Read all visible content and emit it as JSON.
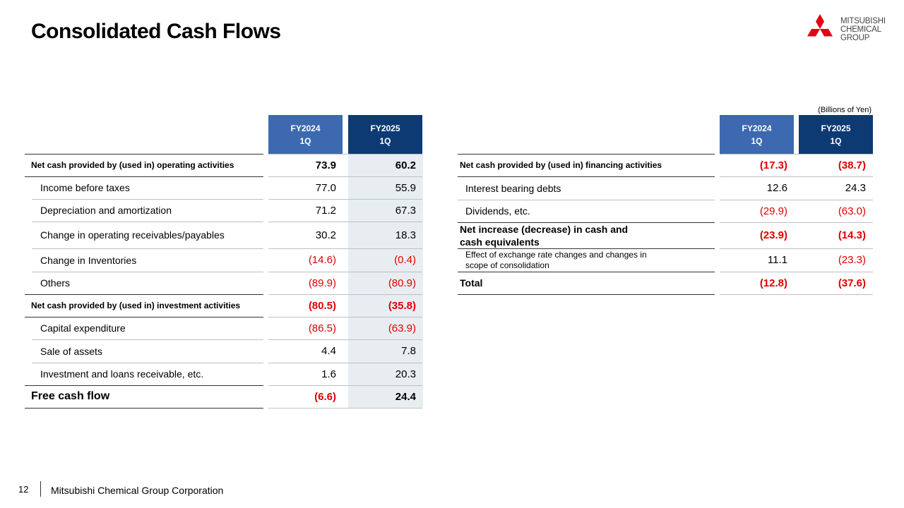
{
  "title": "Consolidated Cash Flows",
  "logo": {
    "line1": "MITSUBISHI",
    "line2": "CHEMICAL",
    "line3": "GROUP",
    "color": "#e60012"
  },
  "unit_note": "(Billions of Yen)",
  "columns": {
    "fy2024": {
      "line1": "FY2024",
      "line2": "1Q",
      "color": "#3d69b0"
    },
    "fy2025": {
      "line1": "FY2025",
      "line2": "1Q",
      "color": "#0e3a74"
    }
  },
  "left_rows": [
    {
      "label": "Net cash provided by (used in) operating activities",
      "fy2024": "73.9",
      "fy2025": "60.2"
    },
    {
      "label": "Income before taxes",
      "fy2024": "77.0",
      "fy2025": "55.9"
    },
    {
      "label": "Depreciation and amortization",
      "fy2024": "71.2",
      "fy2025": "67.3"
    },
    {
      "label": "Change in operating receivables/payables",
      "fy2024": "30.2",
      "fy2025": "18.3"
    },
    {
      "label": "Change in Inventories",
      "fy2024": "(14.6)",
      "fy2025": "(0.4)"
    },
    {
      "label": "Others",
      "fy2024": "(89.9)",
      "fy2025": "(80.9)"
    },
    {
      "label": "Net cash provided by (used in) investment activities",
      "fy2024": "(80.5)",
      "fy2025": "(35.8)"
    },
    {
      "label": "Capital expenditure",
      "fy2024": "(86.5)",
      "fy2025": "(63.9)"
    },
    {
      "label": "Sale of assets",
      "fy2024": "4.4",
      "fy2025": "7.8"
    },
    {
      "label": "Investment and loans receivable, etc.",
      "fy2024": "1.6",
      "fy2025": "20.3"
    },
    {
      "label": "Free cash flow",
      "fy2024": "(6.6)",
      "fy2025": "24.4"
    }
  ],
  "right_rows": [
    {
      "label": "Net cash provided by (used in) financing activities",
      "fy2024": "(17.3)",
      "fy2025": "(38.7)"
    },
    {
      "label": "Interest bearing debts",
      "fy2024": "12.6",
      "fy2025": "24.3"
    },
    {
      "label": "Dividends, etc.",
      "fy2024": "(29.9)",
      "fy2025": "(63.0)"
    },
    {
      "label_line1": "Net increase (decrease) in cash and",
      "label_line2": "cash equivalents",
      "fy2024": "(23.9)",
      "fy2025": "(14.3)"
    },
    {
      "label_line1": "Effect of exchange rate changes and changes in",
      "label_line2": "scope of consolidation",
      "fy2024": "11.1",
      "fy2025": "(23.3)"
    },
    {
      "label": "Total",
      "fy2024": "(12.8)",
      "fy2025": "(37.6)"
    }
  ],
  "footer": {
    "page": "12",
    "company": "Mitsubishi Chemical Group Corporation"
  }
}
